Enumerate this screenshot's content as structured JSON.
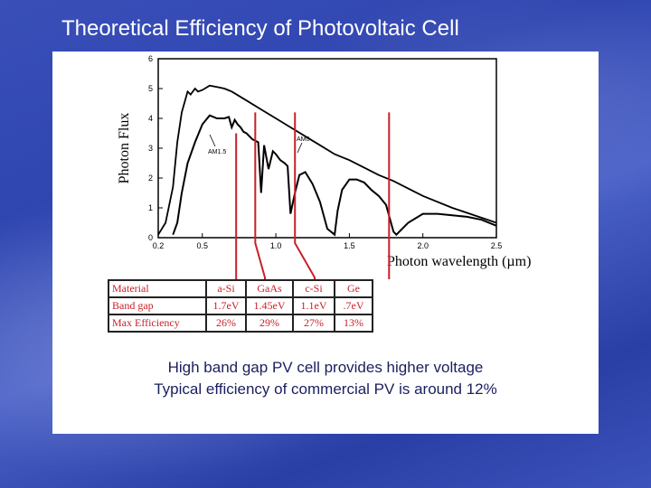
{
  "slide": {
    "title": "Theoretical Efficiency of Photovoltaic Cell",
    "caption_lines": [
      "High band gap PV cell provides higher voltage",
      "Typical efficiency of commercial PV is around 12%"
    ]
  },
  "colors": {
    "background": "#3a4fb8",
    "title_text": "#ffffff",
    "caption_text": "#1a1f5e",
    "red_markers": "#c8202a",
    "curve": "#000000"
  },
  "chart_data": {
    "type": "line",
    "title": "",
    "xlabel": "Photon wavelength (µm)",
    "ylabel": "Photon Flux",
    "xlim": [
      0.2,
      2.5
    ],
    "ylim": [
      0,
      6
    ],
    "x_ticks": [
      0.2,
      0.5,
      1.0,
      1.5,
      2.0,
      2.5
    ],
    "x_tick_labels": [
      "0.2",
      "0.5",
      "1.0",
      "1.5",
      "2.0",
      "2.5"
    ],
    "y_ticks": [
      0,
      1,
      2,
      3,
      4,
      5,
      6
    ],
    "y_tick_labels": [
      "0",
      "1",
      "2",
      "3",
      "4",
      "5",
      "6"
    ],
    "series": [
      {
        "name": "AM0",
        "x": [
          0.2,
          0.25,
          0.3,
          0.33,
          0.36,
          0.4,
          0.42,
          0.45,
          0.47,
          0.5,
          0.55,
          0.6,
          0.65,
          0.7,
          0.8,
          0.9,
          1.0,
          1.1,
          1.2,
          1.3,
          1.4,
          1.5,
          1.6,
          1.7,
          1.8,
          1.9,
          2.0,
          2.2,
          2.5
        ],
        "y": [
          0.1,
          0.5,
          1.7,
          3.2,
          4.2,
          4.9,
          4.8,
          5.0,
          4.9,
          4.95,
          5.1,
          5.05,
          5.0,
          4.9,
          4.6,
          4.3,
          4.0,
          3.7,
          3.4,
          3.1,
          2.8,
          2.6,
          2.35,
          2.1,
          1.9,
          1.65,
          1.4,
          1.0,
          0.5
        ]
      },
      {
        "name": "AM1.5",
        "x": [
          0.3,
          0.33,
          0.36,
          0.4,
          0.45,
          0.5,
          0.55,
          0.6,
          0.65,
          0.68,
          0.7,
          0.72,
          0.74,
          0.76,
          0.78,
          0.8,
          0.84,
          0.88,
          0.9,
          0.92,
          0.95,
          0.98,
          1.0,
          1.03,
          1.06,
          1.08,
          1.1,
          1.13,
          1.16,
          1.2,
          1.25,
          1.3,
          1.35,
          1.4,
          1.42,
          1.45,
          1.5,
          1.55,
          1.6,
          1.65,
          1.7,
          1.75,
          1.8,
          1.82,
          1.9,
          2.0,
          2.1,
          2.2,
          2.3,
          2.4,
          2.5
        ],
        "y": [
          0.1,
          0.5,
          1.5,
          2.5,
          3.2,
          3.8,
          4.1,
          4.0,
          4.0,
          4.05,
          3.7,
          3.95,
          3.8,
          3.7,
          3.55,
          3.5,
          3.3,
          3.2,
          1.5,
          3.1,
          2.3,
          2.9,
          2.8,
          2.6,
          2.5,
          2.4,
          0.8,
          1.5,
          2.1,
          2.2,
          1.8,
          1.2,
          0.3,
          0.1,
          0.9,
          1.6,
          1.95,
          1.95,
          1.85,
          1.6,
          1.4,
          1.1,
          0.2,
          0.1,
          0.5,
          0.8,
          0.8,
          0.75,
          0.7,
          0.6,
          0.4
        ]
      }
    ],
    "curve_labels": [
      "AM0",
      "AM1.5"
    ],
    "band_gap_markers": [
      {
        "material": "a-Si",
        "wavelength": 0.73
      },
      {
        "material": "GaAs",
        "wavelength": 0.86
      },
      {
        "material": "c-Si",
        "wavelength": 1.13
      },
      {
        "material": "Ge",
        "wavelength": 1.77
      }
    ]
  },
  "table": {
    "rows": [
      {
        "label": "Material",
        "cells": [
          "a-Si",
          "GaAs",
          "c-Si",
          "Ge"
        ]
      },
      {
        "label": "Band gap",
        "cells": [
          "1.7eV",
          "1.45eV",
          "1.1eV",
          ".7eV"
        ]
      },
      {
        "label": "Max Efficiency",
        "cells": [
          "26%",
          "29%",
          "27%",
          "13%"
        ]
      }
    ]
  }
}
